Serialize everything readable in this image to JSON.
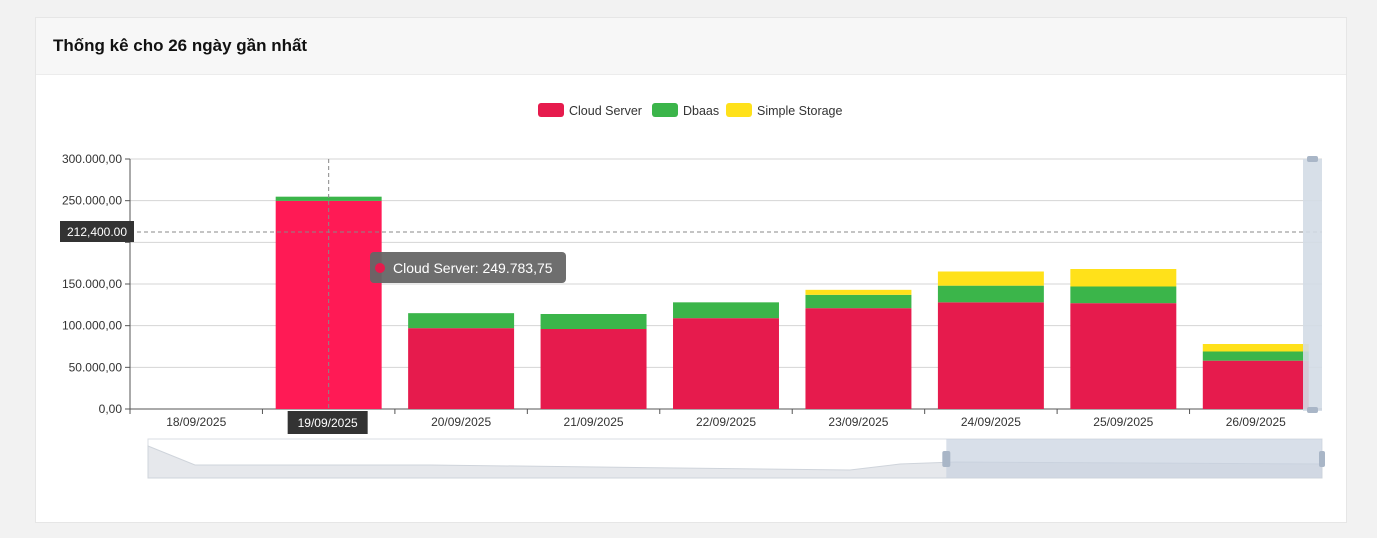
{
  "card": {
    "title": "Thống kê cho 26 ngày gần nhất"
  },
  "chart_data": {
    "type": "bar",
    "stacked": true,
    "categories": [
      "18/09/2025",
      "19/09/2025",
      "20/09/2025",
      "21/09/2025",
      "22/09/2025",
      "23/09/2025",
      "24/09/2025",
      "25/09/2025",
      "26/09/2025"
    ],
    "series": [
      {
        "name": "Cloud Server",
        "color": "#e61b4d",
        "values": [
          0,
          249783.75,
          97000,
          96000,
          109000,
          121000,
          128000,
          127000,
          58000
        ]
      },
      {
        "name": "Dbaas",
        "color": "#3bb54a",
        "values": [
          0,
          5000,
          18000,
          18000,
          19000,
          16000,
          20000,
          20000,
          11000
        ]
      },
      {
        "name": "Simple Storage",
        "color": "#ffe11a",
        "values": [
          0,
          0,
          0,
          0,
          0,
          6000,
          17000,
          21000,
          9000
        ]
      }
    ],
    "yticks": [
      "0,00",
      "50.000,00",
      "100.000,00",
      "150.000,00",
      "",
      "250.000,00",
      "300.000,00"
    ],
    "ylim": [
      0,
      300000
    ],
    "grid": true,
    "legend_position": "top-center",
    "highlight_color": "#ff1a55"
  },
  "tooltip": {
    "series": "Cloud Server",
    "value": "249.783,75",
    "category_index": 1,
    "color": "#e61b4d"
  },
  "cursor": {
    "y_value": 212400,
    "y_label": "212,400.00",
    "x_label": "19/09/2025"
  },
  "zoom": {
    "start": 0,
    "handle": 0.68,
    "end": 1
  }
}
